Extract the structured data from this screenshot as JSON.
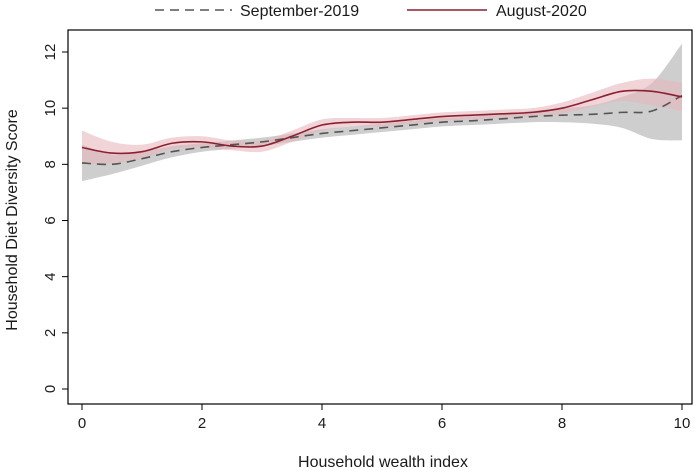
{
  "chart_data": {
    "type": "line",
    "title": "",
    "xlabel": "Household wealth index",
    "ylabel": "Household Diet Diversity Score",
    "xlim": [
      0,
      10
    ],
    "ylim": [
      0,
      12
    ],
    "xticks": [
      "0",
      "2",
      "4",
      "6",
      "8",
      "10"
    ],
    "yticks": [
      "0",
      "2",
      "4",
      "6",
      "8",
      "10",
      "12"
    ],
    "grid": false,
    "legend_position": "top",
    "series": [
      {
        "name": "September-2019",
        "color": "#555555",
        "style": "dashed",
        "band_color": "#bdbdbd",
        "x": [
          0,
          0.5,
          1,
          1.5,
          2,
          2.5,
          3,
          3.5,
          4,
          4.5,
          5,
          5.5,
          6,
          6.5,
          7,
          7.5,
          8,
          8.5,
          9,
          9.5,
          10
        ],
        "y": [
          8.05,
          8.0,
          8.2,
          8.45,
          8.6,
          8.7,
          8.8,
          8.95,
          9.1,
          9.2,
          9.3,
          9.4,
          9.5,
          9.55,
          9.62,
          9.7,
          9.75,
          9.78,
          9.85,
          9.9,
          10.45
        ],
        "lower": [
          7.4,
          7.65,
          7.95,
          8.25,
          8.45,
          8.55,
          8.65,
          8.8,
          8.95,
          9.05,
          9.15,
          9.25,
          9.35,
          9.4,
          9.45,
          9.5,
          9.5,
          9.45,
          9.3,
          8.9,
          8.85
        ],
        "upper": [
          8.7,
          8.35,
          8.45,
          8.65,
          8.75,
          8.85,
          8.95,
          9.1,
          9.25,
          9.35,
          9.45,
          9.55,
          9.65,
          9.7,
          9.8,
          9.9,
          10.0,
          10.1,
          10.4,
          10.9,
          12.3
        ]
      },
      {
        "name": "August-2020",
        "color": "#8c2030",
        "style": "solid",
        "band_color": "#e6b8bd",
        "x": [
          0,
          0.5,
          1,
          1.5,
          2,
          2.5,
          3,
          3.5,
          4,
          4.5,
          5,
          5.5,
          6,
          6.5,
          7,
          7.5,
          8,
          8.5,
          9,
          9.5,
          10
        ],
        "y": [
          8.6,
          8.4,
          8.45,
          8.75,
          8.8,
          8.65,
          8.65,
          9.0,
          9.4,
          9.5,
          9.5,
          9.6,
          9.7,
          9.75,
          9.8,
          9.85,
          10.0,
          10.3,
          10.6,
          10.6,
          10.4
        ],
        "lower": [
          8.0,
          8.05,
          8.2,
          8.55,
          8.6,
          8.5,
          8.45,
          8.8,
          9.2,
          9.35,
          9.35,
          9.45,
          9.55,
          9.6,
          9.65,
          9.7,
          9.8,
          10.05,
          10.25,
          10.1,
          9.9
        ],
        "upper": [
          9.2,
          8.8,
          8.7,
          8.95,
          9.0,
          8.85,
          8.85,
          9.2,
          9.6,
          9.65,
          9.65,
          9.75,
          9.85,
          9.9,
          9.95,
          10.0,
          10.2,
          10.55,
          10.9,
          11.05,
          10.9
        ]
      }
    ]
  }
}
